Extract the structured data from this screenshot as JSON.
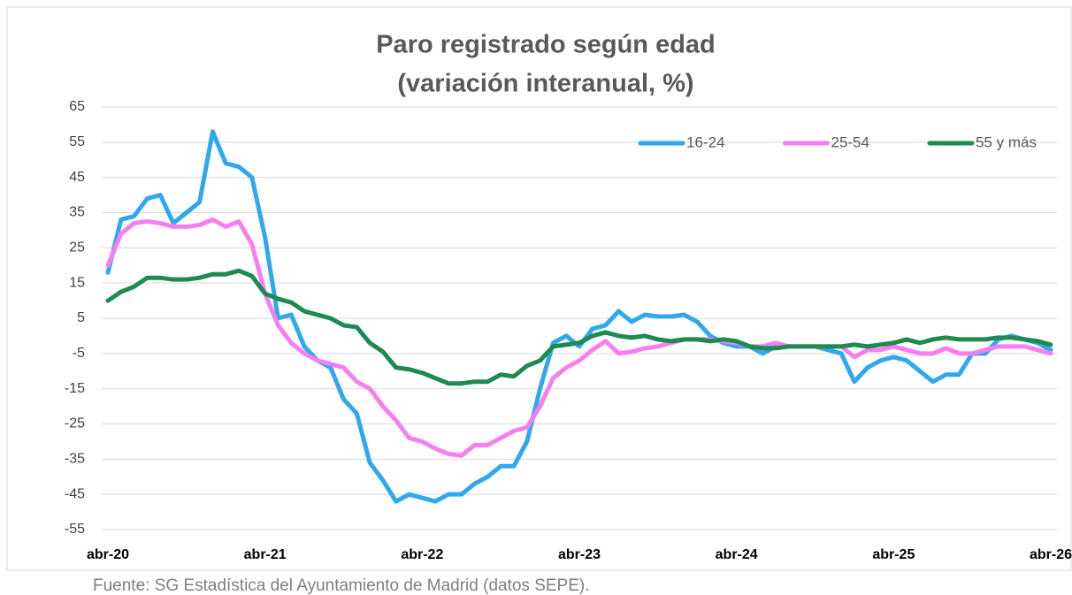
{
  "chart_data": {
    "type": "line",
    "title": [
      "Paro registrado según edad",
      "(variación interanual, %)"
    ],
    "source": "Fuente: SG Estadística del Ayuntamiento de Madrid (datos SEPE).",
    "categories": [
      "abr-20",
      null,
      null,
      null,
      null,
      null,
      null,
      null,
      null,
      null,
      null,
      null,
      "abr-21",
      null,
      null,
      null,
      null,
      null,
      null,
      null,
      null,
      null,
      null,
      null,
      "abr-22",
      null,
      null,
      null,
      null,
      null,
      null,
      null,
      null,
      null,
      null,
      null,
      "abr-23",
      null,
      null,
      null,
      null,
      null,
      null,
      null,
      null,
      null,
      null,
      null,
      "abr-24",
      null,
      null,
      null,
      null,
      null,
      null,
      null,
      null,
      null,
      null,
      null,
      "abr-25",
      null,
      null,
      null,
      null,
      null,
      null,
      null,
      null,
      null,
      null,
      null,
      "abr-26"
    ],
    "series": [
      {
        "name": "16-24",
        "color": "#2ea8ef",
        "values": [
          18,
          33,
          34,
          39,
          40,
          32,
          35,
          38,
          58,
          49,
          48,
          45,
          28,
          5,
          6,
          -3,
          -7,
          -9,
          -18,
          -22,
          -36,
          -41,
          -47,
          -45,
          -46,
          -47,
          -45,
          -45,
          -42,
          -40,
          -37,
          -37,
          -30,
          -15,
          -2,
          0,
          -3,
          2,
          3,
          7,
          4,
          6,
          5.5,
          5.5,
          6,
          4,
          0,
          -2,
          -3,
          -3,
          -5,
          -3,
          -3,
          -3,
          -3,
          -4,
          -5,
          -13,
          -9,
          -7,
          -6,
          -7,
          -10,
          -13,
          -11,
          -11,
          -5,
          -5,
          -1,
          0,
          -1,
          -2,
          -4
        ]
      },
      {
        "name": "25-54",
        "color": "#f77ef0",
        "values": [
          20,
          29,
          32,
          32.5,
          32,
          31,
          31,
          31.5,
          33,
          31,
          32.5,
          26,
          12,
          3,
          -2,
          -5,
          -7,
          -8,
          -9,
          -13,
          -15,
          -20,
          -24,
          -29,
          -30,
          -32,
          -33.5,
          -34,
          -31,
          -31,
          -29,
          -27,
          -26,
          -20,
          -12,
          -9,
          -7,
          -4,
          -1.5,
          -5,
          -4.5,
          -3.5,
          -3,
          -2,
          -1,
          -1,
          -1,
          -1.5,
          -2,
          -3,
          -3,
          -2,
          -3,
          -3,
          -3,
          -3,
          -3,
          -6,
          -4,
          -4,
          -3,
          -4,
          -5,
          -5,
          -3.5,
          -5,
          -5,
          -4,
          -3,
          -3,
          -3,
          -4,
          -5
        ]
      },
      {
        "name": "55 y más",
        "color": "#1e8a52",
        "values": [
          10,
          12.5,
          14,
          16.5,
          16.5,
          16,
          16,
          16.5,
          17.5,
          17.5,
          18.5,
          17,
          12,
          10.5,
          9.5,
          7,
          6,
          5,
          3,
          2.5,
          -2,
          -4.5,
          -9,
          -9.5,
          -10.5,
          -12,
          -13.5,
          -13.5,
          -13,
          -13,
          -11,
          -11.5,
          -8.5,
          -7,
          -3,
          -2.5,
          -2,
          0,
          1,
          0,
          -0.5,
          0,
          -1,
          -1.5,
          -1,
          -1,
          -1.5,
          -1,
          -1.5,
          -3,
          -3.5,
          -3.5,
          -3,
          -3,
          -3,
          -3,
          -3,
          -2.5,
          -3,
          -2.5,
          -2,
          -1,
          -2,
          -1,
          -0.5,
          -1,
          -1,
          -1,
          -0.5,
          -0.5,
          -1,
          -1.5,
          -2.5
        ]
      }
    ],
    "ylim": [
      -55,
      65
    ],
    "yticks": [
      -55,
      -45,
      -35,
      -25,
      -15,
      -5,
      5,
      15,
      25,
      35,
      45,
      55,
      65
    ],
    "grid": true,
    "legend": "upper right"
  }
}
